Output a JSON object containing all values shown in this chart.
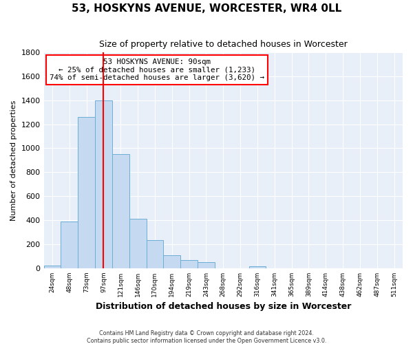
{
  "title": "53, HOSKYNS AVENUE, WORCESTER, WR4 0LL",
  "subtitle": "Size of property relative to detached houses in Worcester",
  "xlabel": "Distribution of detached houses by size in Worcester",
  "ylabel": "Number of detached properties",
  "bar_values": [
    25,
    390,
    1260,
    1400,
    950,
    415,
    235,
    110,
    70,
    50,
    0,
    0,
    15,
    0,
    0,
    0,
    0,
    0,
    0,
    0,
    0
  ],
  "bin_labels": [
    "24sqm",
    "48sqm",
    "73sqm",
    "97sqm",
    "121sqm",
    "146sqm",
    "170sqm",
    "194sqm",
    "219sqm",
    "243sqm",
    "268sqm",
    "292sqm",
    "316sqm",
    "341sqm",
    "365sqm",
    "389sqm",
    "414sqm",
    "438sqm",
    "462sqm",
    "487sqm",
    "511sqm"
  ],
  "bin_edges_numeric": [
    0,
    1,
    2,
    3,
    4,
    5,
    6,
    7,
    8,
    9,
    10,
    11,
    12,
    13,
    14,
    15,
    16,
    17,
    18,
    19,
    20,
    21
  ],
  "bar_color": "#c5d9f0",
  "bar_edge_color": "#6baed6",
  "vline_x": 3.0,
  "vline_color": "red",
  "ylim": [
    0,
    1800
  ],
  "yticks": [
    0,
    200,
    400,
    600,
    800,
    1000,
    1200,
    1400,
    1600,
    1800
  ],
  "annotation_title": "53 HOSKYNS AVENUE: 90sqm",
  "annotation_line1": "← 25% of detached houses are smaller (1,233)",
  "annotation_line2": "74% of semi-detached houses are larger (3,620) →",
  "annotation_box_color": "white",
  "annotation_box_edge": "red",
  "footer1": "Contains HM Land Registry data © Crown copyright and database right 2024.",
  "footer2": "Contains public sector information licensed under the Open Government Licence v3.0.",
  "plot_bg_color": "#e8eff8",
  "fig_bg_color": "#ffffff",
  "grid_color": "white"
}
